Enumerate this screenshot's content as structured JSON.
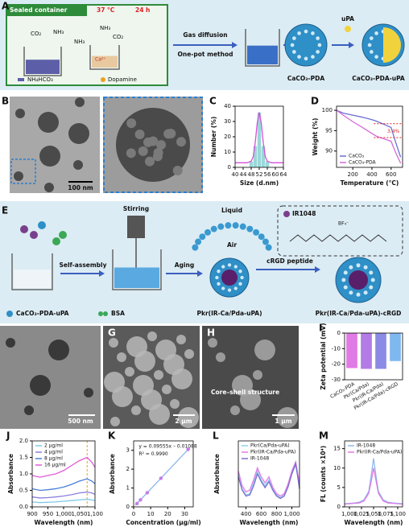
{
  "scheme_a": {
    "label": "A",
    "box_title": "Sealed container",
    "temperature": "37 °C",
    "time": "24 h",
    "gases": [
      "CO₂",
      "NH₃",
      "NH₃",
      "NH₃",
      "CO₂"
    ],
    "ion": "Ca²⁺",
    "legend": [
      "NH₄HCO₃",
      "Dopamine"
    ],
    "arrow_top": "Gas diffusion",
    "arrow_bottom": "One-pot method",
    "reagent": "uPA",
    "products": [
      "CaCO₃-PDA",
      "CaCO₃-PDA-uPA"
    ]
  },
  "images": [
    {
      "label": "B",
      "scale": "100 nm"
    },
    {
      "label": "F",
      "scale": "500 nm"
    },
    {
      "label": "G",
      "scale": "2 µm"
    },
    {
      "label": "H",
      "scale": "1 µm",
      "note": "Core–shell structure"
    }
  ],
  "scheme_e": {
    "label": "E",
    "stirring": "Stirring",
    "liquid": "Liquid",
    "air": "Air",
    "dye": "IR1048",
    "counterion": "BF₄⁻",
    "steps": [
      "Self-assembly",
      "Aging",
      "cRGD peptide"
    ],
    "legend": [
      "CaCO₃-PDA-uPA",
      "BSA"
    ],
    "products": [
      "Pkr(IR-Ca/Pda-uPA)",
      "Pkr(IR-Ca/Pda-uPA)-cRGD"
    ]
  },
  "chart_data": [
    {
      "label": "C",
      "type": "histogram",
      "xlabel": "Size (d.nm)",
      "ylabel": "Number (%)",
      "bins": [
        47,
        49,
        51,
        53,
        55,
        57
      ],
      "counts": [
        4,
        14,
        36,
        14,
        4
      ],
      "color": "#9ad7d8",
      "fit_x": [
        40,
        44,
        46,
        48,
        49,
        50,
        51,
        52,
        53,
        54,
        55,
        56,
        58,
        60,
        64
      ],
      "fit_values": [
        3,
        3,
        3,
        4,
        7,
        16,
        29,
        36,
        29,
        16,
        7,
        4,
        3,
        3,
        3
      ],
      "fit_color": "#d450d8",
      "xlim": [
        40,
        64
      ],
      "xticks": [
        40,
        44,
        48,
        52,
        56,
        60,
        64
      ],
      "ylim": [
        0,
        40
      ],
      "yticks": [
        0,
        10,
        20,
        30,
        40
      ]
    },
    {
      "label": "D",
      "type": "line",
      "xlabel": "Temperature (°C)",
      "ylabel": "Weight (%)",
      "x": [
        30,
        100,
        200,
        300,
        400,
        450,
        500,
        550,
        600,
        650,
        700
      ],
      "series": [
        {
          "name": "CaCO₃",
          "color": "#6b6fd1",
          "values": [
            100,
            99.3,
            98.8,
            98.3,
            97.7,
            97.3,
            96.8,
            96.3,
            95.8,
            92,
            88.5
          ]
        },
        {
          "name": "CaCO₃-PDA",
          "color": "#d36bd9",
          "values": [
            100,
            98.8,
            97.2,
            95.8,
            94.3,
            93.6,
            93.2,
            92.8,
            92.4,
            89.5,
            87
          ]
        }
      ],
      "annotations": [
        "3.4%"
      ],
      "annotation_color": "#e02020",
      "xlim": [
        30,
        720
      ],
      "xticks": [
        200,
        400,
        600
      ],
      "ylim": [
        86,
        101
      ],
      "yticks": [
        90,
        95,
        100
      ],
      "legend": "lower left"
    },
    {
      "label": "I",
      "type": "bar",
      "ylabel": "Zeta potential (mV)",
      "categories": [
        "CaCO₃-PDA",
        "Pkr(Ca/Pda)",
        "Pkr(IR-Ca/Pda)",
        "Pkr(IR-Ca/Pda)-cRGD"
      ],
      "values": [
        -22.5,
        -23,
        -23,
        -18
      ],
      "colors": [
        "#e07be6",
        "#b27be6",
        "#8b8be6",
        "#7fb8ef"
      ],
      "ylim": [
        -30,
        0
      ],
      "yticks": [
        0,
        -10,
        -20,
        -30
      ]
    },
    {
      "label": "J",
      "type": "line",
      "xlabel": "Wavelength (nm)",
      "ylabel": "Absorbance",
      "x": [
        900,
        925,
        950,
        975,
        1000,
        1025,
        1050,
        1075,
        1090,
        1100
      ],
      "series": [
        {
          "name": "2 µg/ml",
          "color": "#7fc9e8",
          "values": [
            0.15,
            0.13,
            0.14,
            0.15,
            0.17,
            0.19,
            0.21,
            0.23,
            0.21,
            0.19
          ]
        },
        {
          "name": "4 µg/ml",
          "color": "#8a7fe0",
          "values": [
            0.3,
            0.27,
            0.28,
            0.3,
            0.33,
            0.37,
            0.42,
            0.45,
            0.42,
            0.38
          ]
        },
        {
          "name": "8 µg/ml",
          "color": "#4a7fd8",
          "values": [
            0.55,
            0.5,
            0.52,
            0.55,
            0.6,
            0.68,
            0.78,
            0.85,
            0.78,
            0.7
          ]
        },
        {
          "name": "16 µg/ml",
          "color": "#e05bd9",
          "values": [
            0.95,
            0.9,
            0.95,
            1.0,
            1.1,
            1.25,
            1.4,
            1.5,
            1.35,
            1.2
          ]
        }
      ],
      "vline": 1075,
      "vline_color": "#f0a020",
      "xlim": [
        900,
        1100
      ],
      "xticks": [
        900,
        950,
        {
          "value": 1000,
          "label": "1,000"
        },
        {
          "value": 1050,
          "label": "1,050"
        },
        {
          "value": 1100,
          "label": "1,100"
        }
      ],
      "ylim": [
        0,
        2
      ],
      "yticks": [
        {
          "value": 0,
          "label": "0.0"
        },
        0.5,
        {
          "value": 1,
          "label": "1.0"
        },
        1.5,
        {
          "value": 2,
          "label": "2.0"
        }
      ],
      "legend": "upper left"
    },
    {
      "label": "K",
      "type": "scatter",
      "xlabel": "Concentration (µg/ml)",
      "ylabel": "Absorbance",
      "x": [
        2,
        4,
        8,
        16,
        32
      ],
      "values": [
        0.18,
        0.37,
        0.75,
        1.52,
        3.05
      ],
      "color": "#c77be6",
      "fit_x": [
        1,
        33
      ],
      "fit_values": [
        0.085,
        3.14
      ],
      "fit_color": "#8fb7ef",
      "annotations": [
        "y = 0.09555x – 0.01088",
        "R² = 0.9990"
      ],
      "xlim": [
        0,
        35
      ],
      "xticks": [
        0,
        10,
        20,
        30
      ],
      "ylim": [
        0,
        3.5
      ],
      "yticks": [
        0,
        1,
        2,
        3
      ]
    },
    {
      "label": "L",
      "type": "line",
      "xlabel": "Wavelength (nm)",
      "ylabel": "Absorbance",
      "x": [
        300,
        350,
        400,
        450,
        500,
        550,
        600,
        650,
        700,
        750,
        800,
        850,
        900,
        950,
        1000,
        1050,
        1100
      ],
      "series": [
        {
          "name": "Pkr(Ca/Pda-uPA)",
          "color": "#8fd0ef",
          "values": [
            0.55,
            0.3,
            0.2,
            0.22,
            0.4,
            0.6,
            0.45,
            0.35,
            0.45,
            0.3,
            0.2,
            0.15,
            0.2,
            0.35,
            0.55,
            0.7,
            0.35
          ]
        },
        {
          "name": "Pkr(IR-Ca/Pda-uPA)",
          "color": "#e07be6",
          "values": [
            0.6,
            0.35,
            0.25,
            0.28,
            0.45,
            0.65,
            0.5,
            0.4,
            0.5,
            0.33,
            0.22,
            0.18,
            0.22,
            0.38,
            0.6,
            0.75,
            0.4
          ]
        },
        {
          "name": "IR-1048",
          "color": "#7a6fd0",
          "values": [
            0.5,
            0.28,
            0.18,
            0.2,
            0.35,
            0.55,
            0.42,
            0.32,
            0.42,
            0.28,
            0.18,
            0.14,
            0.18,
            0.33,
            0.55,
            0.72,
            0.3
          ]
        }
      ],
      "xlim": [
        300,
        1100
      ],
      "xticks": [
        400,
        600,
        800,
        {
          "value": 1000,
          "label": "1,000"
        }
      ],
      "ylim": [
        0,
        1.1
      ],
      "legend": "upper left"
    },
    {
      "label": "M",
      "type": "line",
      "xlabel": "Wavelength (nm)",
      "ylabel": "FL (counts ×10⁴)",
      "x": [
        990,
        1000,
        1010,
        1020,
        1030,
        1040,
        1045,
        1050,
        1055,
        1060,
        1070,
        1080,
        1090,
        1100,
        1110
      ],
      "series": [
        {
          "name": "IR-1048",
          "color": "#8fb7ef",
          "values": [
            0.8,
            0.9,
            1,
            1.2,
            1.8,
            4,
            8,
            12.5,
            8,
            4,
            1.8,
            1.2,
            1,
            0.9,
            0.8
          ]
        },
        {
          "name": "Pkr(IR-Ca/Pda-uPA)",
          "color": "#e07be6",
          "values": [
            0.7,
            0.8,
            0.9,
            1,
            1.5,
            3.5,
            6.5,
            10,
            6.8,
            3.5,
            1.5,
            1,
            0.9,
            0.8,
            0.7
          ]
        }
      ],
      "xlim": [
        990,
        1110
      ],
      "xticks": [
        {
          "value": 1000,
          "label": "1,000"
        },
        {
          "value": 1025,
          "label": "1,025"
        },
        {
          "value": 1050,
          "label": "1,050"
        },
        {
          "value": 1075,
          "label": "1,075"
        },
        {
          "value": 1100,
          "label": "1,100"
        }
      ],
      "ylim": [
        0,
        17
      ],
      "yticks": [
        0,
        5,
        10,
        15
      ],
      "legend": "upper left"
    }
  ]
}
